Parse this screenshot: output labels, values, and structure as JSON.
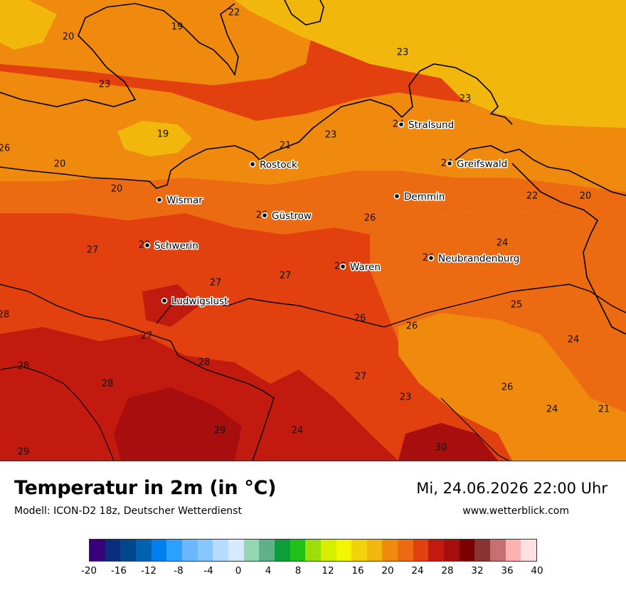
{
  "map": {
    "cities": [
      {
        "name": "Stralsund",
        "temp": "24"
      },
      {
        "name": "Rostock",
        "temp": ""
      },
      {
        "name": "Greifswald",
        "temp": "24"
      },
      {
        "name": "Demmin",
        "temp": ""
      },
      {
        "name": "Wismar",
        "temp": ""
      },
      {
        "name": "Güstrow",
        "temp": "26"
      },
      {
        "name": "Schwerin",
        "temp": "28"
      },
      {
        "name": "Neubrandenburg",
        "temp": "26"
      },
      {
        "name": "Waren",
        "temp": "26"
      },
      {
        "name": "Ludwigslust",
        "temp": ""
      }
    ],
    "isotherm_labels": [
      "22",
      "19",
      "20",
      "23",
      "19",
      "23",
      "23",
      "21",
      "23",
      "20",
      "26",
      "20",
      "26",
      "22",
      "20",
      "24",
      "27",
      "27",
      "27",
      "26",
      "26",
      "25",
      "24",
      "28",
      "27",
      "28",
      "28",
      "27",
      "26",
      "23",
      "24",
      "21",
      "29",
      "24",
      "30",
      "29",
      "28"
    ],
    "colors": {
      "yellow": "#f2b70c",
      "orange": "#f08a0e",
      "dark_orange": "#ec6a12",
      "red": "#e2400f",
      "dark_red": "#c21a0e",
      "deep_red": "#a80e0e"
    }
  },
  "footer": {
    "title": "Temperatur in 2m (in °C)",
    "model": "Modell: ICON-D2 18z, Deutscher Wetterdienst",
    "datetime": "Mi, 24.06.2026 22:00 Uhr",
    "website": "www.wetterblick.com"
  },
  "legend": {
    "colors": [
      "#3a007a",
      "#0a2e7e",
      "#00478c",
      "#0062b3",
      "#0080f0",
      "#2ca0ff",
      "#6ab8ff",
      "#86c7ff",
      "#b6dbff",
      "#d7e9ff",
      "#93d7b5",
      "#5fb08b",
      "#0c9e3a",
      "#22c01a",
      "#9bde0a",
      "#d6ee00",
      "#f3f600",
      "#f2d20a",
      "#f2b70c",
      "#f08a0e",
      "#ec6a12",
      "#e2400f",
      "#c21a0e",
      "#a80e0e",
      "#7a0000",
      "#8b3232",
      "#c87070",
      "#ffb0b0",
      "#ffe0e0"
    ],
    "ticks": [
      "-20",
      "-16",
      "-12",
      "-8",
      "-4",
      "0",
      "4",
      "8",
      "12",
      "16",
      "20",
      "24",
      "28",
      "32",
      "36",
      "40"
    ],
    "tick_values": [
      -20,
      -16,
      -12,
      -8,
      -4,
      0,
      4,
      8,
      12,
      16,
      20,
      24,
      28,
      32,
      36,
      40
    ],
    "range": [
      -20,
      40
    ]
  }
}
